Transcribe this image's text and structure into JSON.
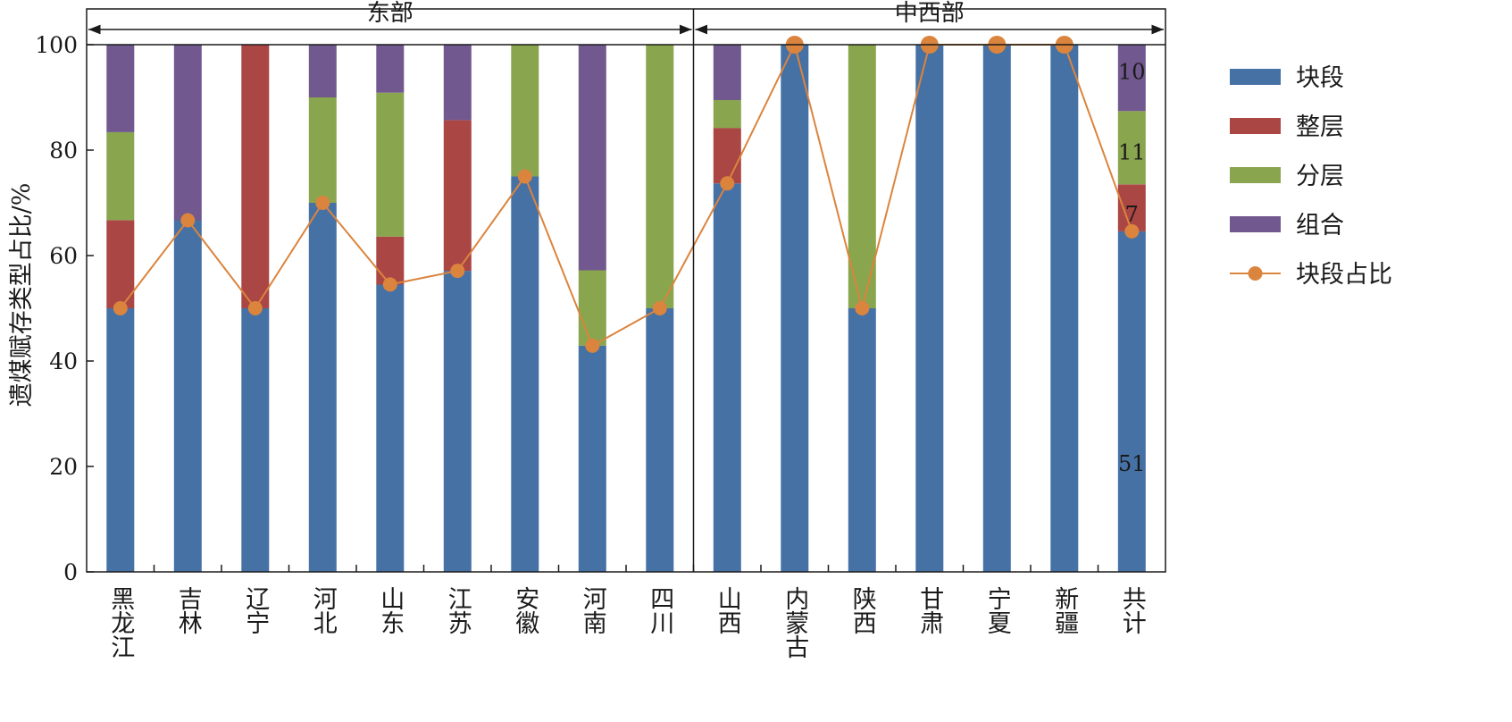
{
  "chart_data": {
    "type": "bar",
    "stacked": true,
    "title": "",
    "xlabel": "",
    "ylabel": "遗煤赋存类型占比/%",
    "ylim": [
      0,
      100
    ],
    "yticks": [
      "0",
      "20",
      "40",
      "60",
      "80",
      "100"
    ],
    "grid": false,
    "legend_position": "right",
    "categories": [
      "黑龙江",
      "吉林",
      "辽宁",
      "河北",
      "山东",
      "江苏",
      "安徽",
      "河南",
      "四川",
      "山西",
      "内蒙古",
      "陕西",
      "甘肃",
      "宁夏",
      "新疆",
      "共计"
    ],
    "groups": [
      {
        "label": "东部",
        "from": 0,
        "to": 8
      },
      {
        "label": "中西部",
        "from": 9,
        "to": 15
      }
    ],
    "series": [
      {
        "name": "块段",
        "color": "#4671a5",
        "values": [
          50,
          66.7,
          50,
          70,
          54.5,
          57.1,
          75,
          42.9,
          50,
          73.7,
          100,
          50,
          100,
          100,
          100,
          64.6
        ]
      },
      {
        "name": "整层",
        "color": "#aa4643",
        "values": [
          16.7,
          0,
          50,
          0,
          9.1,
          28.6,
          0,
          0,
          0,
          10.5,
          0,
          0,
          0,
          0,
          0,
          8.9
        ]
      },
      {
        "name": "分层",
        "color": "#89a54e",
        "values": [
          16.7,
          0,
          0,
          20,
          27.3,
          0,
          25,
          14.3,
          50,
          5.3,
          0,
          50,
          0,
          0,
          0,
          13.9
        ]
      },
      {
        "name": "组合",
        "color": "#71588f",
        "values": [
          16.6,
          33.3,
          0,
          10,
          9.1,
          14.3,
          0,
          42.8,
          0,
          10.5,
          0,
          0,
          0,
          0,
          0,
          12.6
        ]
      }
    ],
    "line": {
      "name": "块段占比",
      "color": "#db843d",
      "values": [
        50,
        66.7,
        50,
        70,
        54.5,
        57.1,
        75,
        42.9,
        50,
        73.7,
        100,
        50,
        100,
        100,
        100,
        64.6
      ]
    },
    "annotations": [
      {
        "category": "共计",
        "series": "块段",
        "text": "51"
      },
      {
        "category": "共计",
        "series": "整层",
        "text": "7"
      },
      {
        "category": "共计",
        "series": "分层",
        "text": "11"
      },
      {
        "category": "共计",
        "series": "组合",
        "text": "10"
      }
    ]
  }
}
